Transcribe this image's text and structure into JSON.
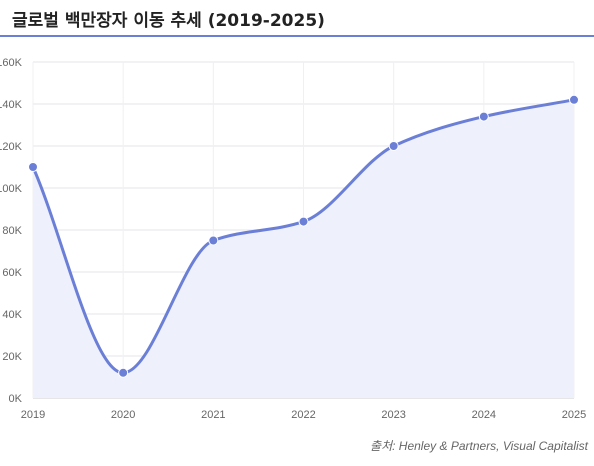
{
  "title": "글로벌 백만장자 이동 추세 (2019-2025)",
  "source": "출처: Henley & Partners, Visual Capitalist",
  "colors": {
    "line": "#6b7fd7",
    "fill": "#eef0fc",
    "grid": "#e6e6ea",
    "accent_rule": "#6b7fd7"
  },
  "chart_data": {
    "type": "area",
    "title": "글로벌 백만장자 이동 추세 (2019-2025)",
    "xlabel": "",
    "ylabel": "",
    "categories": [
      "2019",
      "2020",
      "2021",
      "2022",
      "2023",
      "2024",
      "2025"
    ],
    "values": [
      110000,
      12000,
      75000,
      84000,
      120000,
      134000,
      142000
    ],
    "ylim": [
      0,
      160000
    ],
    "yticks": [
      "0K",
      "20K",
      "40K",
      "60K",
      "80K",
      "100K",
      "120K",
      "140K",
      "160K"
    ],
    "grid": true,
    "legend": "none"
  }
}
